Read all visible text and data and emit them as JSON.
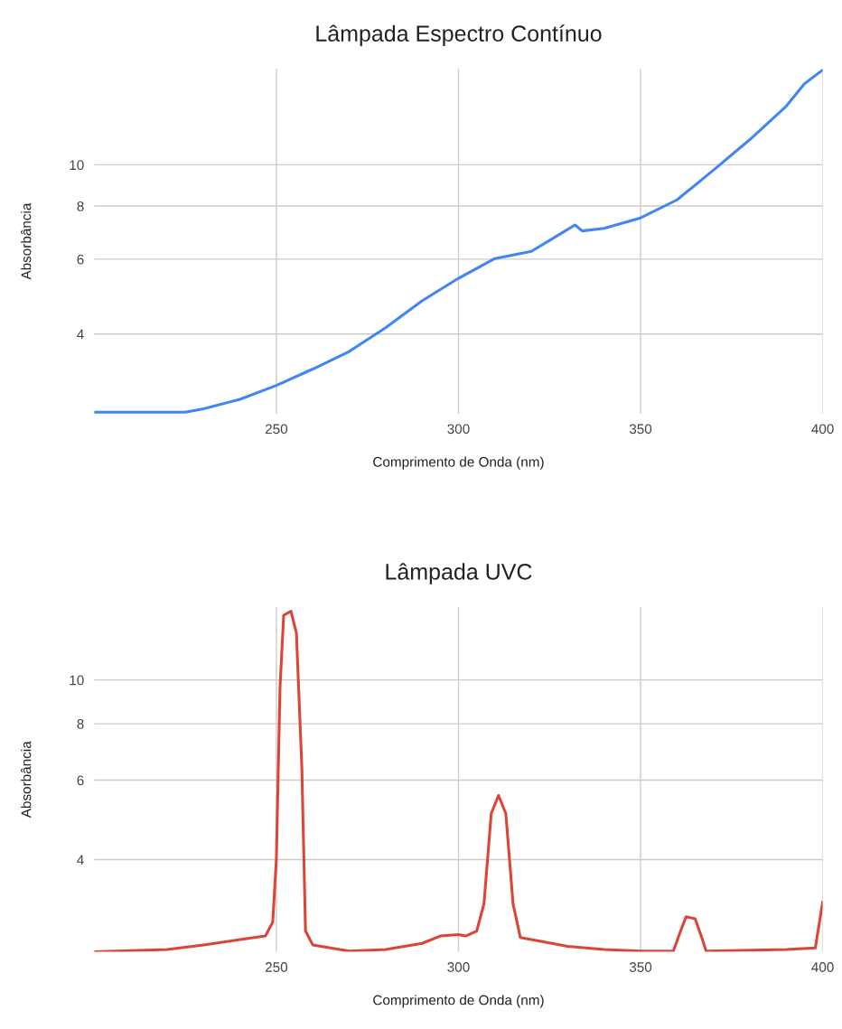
{
  "chart_data": [
    {
      "type": "line",
      "title": "Lâmpada Espectro Contínuo",
      "xlabel": "Comprimento de Onda (nm)",
      "ylabel": "Absorbância",
      "log": "y",
      "grid": true,
      "xlim": [
        200,
        400
      ],
      "xticks": [
        250,
        300,
        350,
        400
      ],
      "ylim": [
        2.6,
        16.8
      ],
      "yticks": [
        4,
        6,
        8,
        10
      ],
      "x": [
        200,
        225,
        230,
        240,
        250,
        260,
        270,
        280,
        290,
        300,
        310,
        320,
        325,
        332,
        334,
        340,
        350,
        360,
        370,
        380,
        390,
        395,
        400
      ],
      "series": [
        {
          "color": "#4285f4",
          "values": [
            2.62,
            2.62,
            2.67,
            2.81,
            3.03,
            3.31,
            3.64,
            4.14,
            4.79,
            5.41,
            6.02,
            6.26,
            6.64,
            7.22,
            6.99,
            7.09,
            7.5,
            8.27,
            9.71,
            11.46,
            13.73,
            15.5,
            16.7
          ]
        }
      ]
    },
    {
      "type": "line",
      "title": "Lâmpada UVC",
      "xlabel": "Comprimento de Onda (nm)",
      "ylabel": "Absorbância",
      "log": "y",
      "grid": true,
      "xlim": [
        200,
        400
      ],
      "xticks": [
        250,
        300,
        350,
        400
      ],
      "ylim": [
        2.5,
        14.5
      ],
      "yticks": [
        4,
        6,
        8,
        10
      ],
      "x": [
        200,
        220,
        230,
        240,
        247,
        249,
        250,
        251,
        252,
        254,
        255.5,
        257,
        258,
        260,
        270,
        280,
        290,
        295,
        300,
        302,
        305,
        307,
        309,
        311,
        313,
        315,
        317,
        320,
        330,
        340,
        350,
        359,
        361,
        362.5,
        365,
        367,
        368,
        390,
        398,
        400
      ],
      "series": [
        {
          "color": "#db4437",
          "values": [
            2.5,
            2.53,
            2.59,
            2.66,
            2.71,
            2.91,
            4.02,
            9.64,
            13.9,
            14.2,
            12.7,
            6.37,
            2.78,
            2.59,
            2.51,
            2.53,
            2.61,
            2.71,
            2.73,
            2.71,
            2.78,
            3.19,
            5.06,
            5.55,
            5.06,
            3.19,
            2.69,
            2.66,
            2.57,
            2.53,
            2.51,
            2.51,
            2.78,
            2.99,
            2.96,
            2.66,
            2.51,
            2.53,
            2.55,
            3.22
          ]
        }
      ]
    }
  ]
}
